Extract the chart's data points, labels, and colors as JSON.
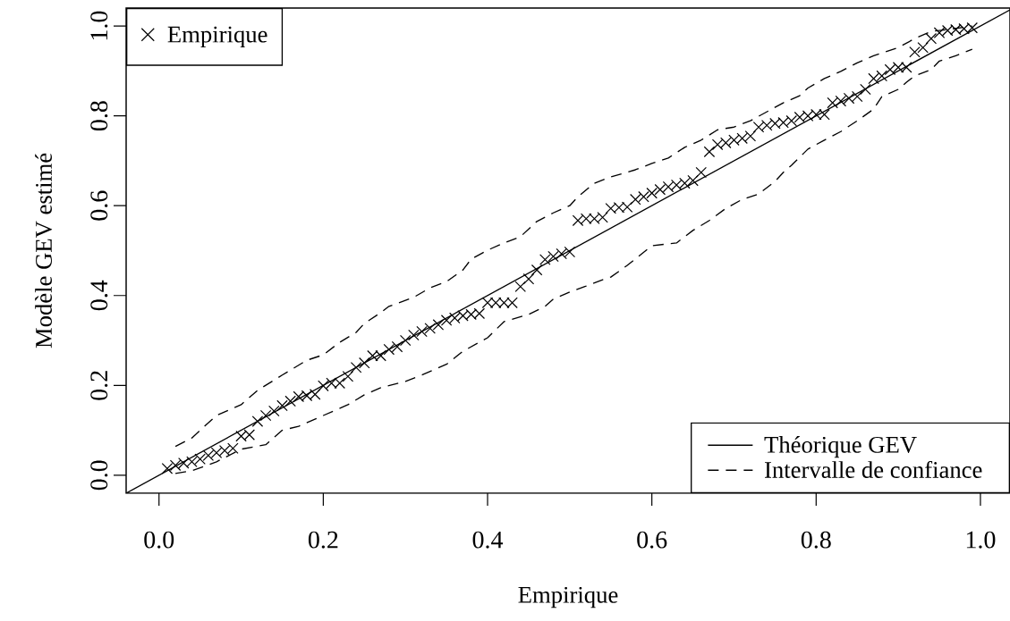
{
  "chart_data": {
    "type": "scatter",
    "xlabel": "Empirique",
    "ylabel": "Modèle GEV estimé",
    "xlim": [
      -0.04,
      1.036
    ],
    "ylim": [
      -0.04,
      1.04
    ],
    "xticks": [
      {
        "value": 0,
        "label": "0.0"
      },
      {
        "value": 0.2,
        "label": "0.2"
      },
      {
        "value": 0.4,
        "label": "0.4"
      },
      {
        "value": 0.6,
        "label": "0.6"
      },
      {
        "value": 0.8,
        "label": "0.8"
      },
      {
        "value": 1,
        "label": "1.0"
      }
    ],
    "yticks": [
      {
        "value": 0,
        "label": "0.0"
      },
      {
        "value": 0.2,
        "label": "0.2"
      },
      {
        "value": 0.4,
        "label": "0.4"
      },
      {
        "value": 0.6,
        "label": "0.6"
      },
      {
        "value": 0.8,
        "label": "0.8"
      },
      {
        "value": 1,
        "label": "1.0"
      }
    ],
    "grid": false,
    "legend": "bottom right",
    "series": [
      {
        "name": "Empirique",
        "marker": "cross",
        "color": "#000000",
        "x": [
          0.01,
          0.02,
          0.03,
          0.04,
          0.05,
          0.06,
          0.07,
          0.08,
          0.09,
          0.1,
          0.11,
          0.12,
          0.13,
          0.14,
          0.15,
          0.16,
          0.17,
          0.18,
          0.19,
          0.2,
          0.21,
          0.22,
          0.23,
          0.24,
          0.25,
          0.26,
          0.27,
          0.28,
          0.29,
          0.3,
          0.31,
          0.32,
          0.33,
          0.34,
          0.35,
          0.36,
          0.37,
          0.38,
          0.39,
          0.4,
          0.41,
          0.42,
          0.43,
          0.44,
          0.45,
          0.46,
          0.47,
          0.48,
          0.49,
          0.5,
          0.51,
          0.52,
          0.53,
          0.54,
          0.55,
          0.56,
          0.57,
          0.58,
          0.59,
          0.6,
          0.61,
          0.62,
          0.63,
          0.64,
          0.65,
          0.66,
          0.67,
          0.68,
          0.69,
          0.7,
          0.71,
          0.72,
          0.73,
          0.74,
          0.75,
          0.76,
          0.77,
          0.78,
          0.79,
          0.8,
          0.81,
          0.82,
          0.83,
          0.84,
          0.85,
          0.86,
          0.87,
          0.88,
          0.89,
          0.9,
          0.91,
          0.92,
          0.93,
          0.94,
          0.95,
          0.96,
          0.97,
          0.98,
          0.99
        ],
        "values": [
          0.015,
          0.022,
          0.027,
          0.03,
          0.036,
          0.044,
          0.05,
          0.055,
          0.06,
          0.087,
          0.09,
          0.12,
          0.133,
          0.143,
          0.155,
          0.165,
          0.175,
          0.177,
          0.18,
          0.199,
          0.205,
          0.205,
          0.22,
          0.24,
          0.25,
          0.266,
          0.266,
          0.28,
          0.286,
          0.3,
          0.312,
          0.32,
          0.327,
          0.335,
          0.345,
          0.35,
          0.355,
          0.358,
          0.36,
          0.384,
          0.384,
          0.384,
          0.384,
          0.42,
          0.437,
          0.457,
          0.48,
          0.487,
          0.493,
          0.497,
          0.567,
          0.571,
          0.571,
          0.574,
          0.594,
          0.596,
          0.597,
          0.614,
          0.62,
          0.628,
          0.636,
          0.642,
          0.646,
          0.65,
          0.656,
          0.674,
          0.72,
          0.736,
          0.74,
          0.746,
          0.75,
          0.755,
          0.775,
          0.779,
          0.783,
          0.785,
          0.789,
          0.797,
          0.8,
          0.803,
          0.803,
          0.829,
          0.833,
          0.839,
          0.843,
          0.859,
          0.883,
          0.889,
          0.903,
          0.908,
          0.908,
          0.942,
          0.952,
          0.972,
          0.985,
          0.99,
          0.992,
          0.994,
          0.996
        ]
      },
      {
        "name": "Théorique GEV",
        "type": "line",
        "line_style": "solid",
        "color": "#000000",
        "x": [
          -0.04,
          1.036
        ],
        "values": [
          -0.04,
          1.036
        ]
      },
      {
        "name": "Intervalle de confiance",
        "type": "line",
        "line_style": "dashed",
        "color": "#000000",
        "x": [
          0.02,
          0.04,
          0.05,
          0.07,
          0.1,
          0.12,
          0.15,
          0.18,
          0.2,
          0.22,
          0.24,
          0.25,
          0.27,
          0.28,
          0.31,
          0.33,
          0.35,
          0.37,
          0.38,
          0.4,
          0.42,
          0.44,
          0.46,
          0.48,
          0.5,
          0.51,
          0.53,
          0.55,
          0.58,
          0.6,
          0.62,
          0.64,
          0.66,
          0.68,
          0.7,
          0.72,
          0.74,
          0.76,
          0.78,
          0.79,
          0.81,
          0.83,
          0.85,
          0.87,
          0.9,
          0.92,
          0.94,
          0.96,
          0.99
        ],
        "values": [
          0.064,
          0.083,
          0.1,
          0.133,
          0.157,
          0.189,
          0.223,
          0.256,
          0.268,
          0.296,
          0.318,
          0.338,
          0.362,
          0.376,
          0.396,
          0.417,
          0.431,
          0.457,
          0.481,
          0.501,
          0.517,
          0.531,
          0.565,
          0.584,
          0.6,
          0.62,
          0.65,
          0.664,
          0.68,
          0.694,
          0.706,
          0.73,
          0.746,
          0.769,
          0.775,
          0.789,
          0.809,
          0.829,
          0.845,
          0.862,
          0.883,
          0.899,
          0.918,
          0.934,
          0.952,
          0.972,
          0.988,
          0.992,
          1.0
        ]
      },
      {
        "type": "line",
        "line_style": "dashed",
        "color": "#000000",
        "x": [
          0.02,
          0.04,
          0.07,
          0.1,
          0.13,
          0.15,
          0.17,
          0.2,
          0.23,
          0.25,
          0.27,
          0.3,
          0.32,
          0.35,
          0.37,
          0.4,
          0.42,
          0.45,
          0.47,
          0.48,
          0.5,
          0.52,
          0.54,
          0.55,
          0.57,
          0.6,
          0.63,
          0.65,
          0.67,
          0.69,
          0.71,
          0.73,
          0.75,
          0.76,
          0.77,
          0.79,
          0.81,
          0.83,
          0.85,
          0.87,
          0.88,
          0.9,
          0.91,
          0.92,
          0.94,
          0.95,
          0.97,
          0.99
        ],
        "values": [
          0.004,
          0.01,
          0.03,
          0.058,
          0.068,
          0.1,
          0.109,
          0.133,
          0.157,
          0.179,
          0.195,
          0.209,
          0.223,
          0.247,
          0.276,
          0.306,
          0.342,
          0.358,
          0.376,
          0.392,
          0.408,
          0.421,
          0.435,
          0.441,
          0.467,
          0.511,
          0.517,
          0.545,
          0.567,
          0.594,
          0.614,
          0.626,
          0.654,
          0.674,
          0.69,
          0.726,
          0.746,
          0.765,
          0.789,
          0.815,
          0.843,
          0.859,
          0.875,
          0.889,
          0.903,
          0.922,
          0.934,
          0.948
        ]
      }
    ]
  }
}
